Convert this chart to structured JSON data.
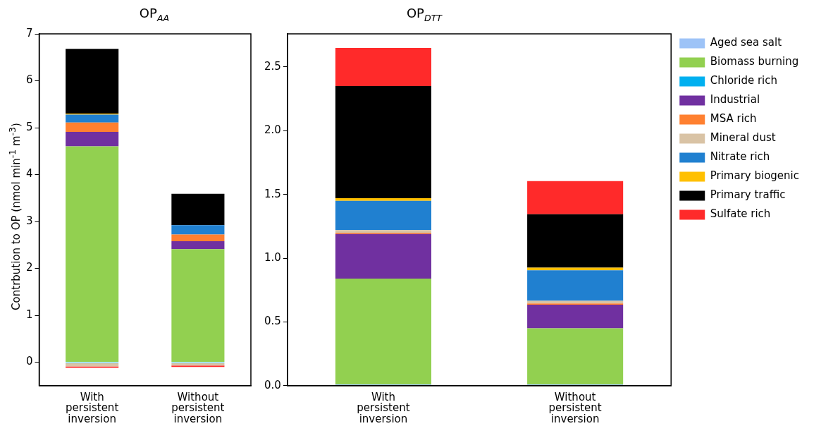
{
  "chart_data": [
    {
      "type": "bar",
      "title": "OP$_{AA}$",
      "ylabel": "Contrbution to OP (nmol min$^{-1}$ m$^{-3}$)",
      "categories": [
        "With persistent inversion",
        "Without persistent inversion"
      ],
      "stacked": true,
      "ylim": [
        -0.5,
        7
      ],
      "yticks": [
        0,
        1,
        2,
        3,
        4,
        5,
        6,
        7
      ],
      "grid": false,
      "legend": false,
      "series": [
        {
          "color": "#9dc3f7",
          "values": [
            0,
            0
          ]
        },
        {
          "color": "#92d050",
          "values": [
            4.6,
            2.41
          ]
        },
        {
          "color": "#00b0f0",
          "values": [
            -0.02,
            -0.02
          ]
        },
        {
          "color": "#7030a0",
          "values": [
            0.31,
            0.17
          ]
        },
        {
          "color": "#ff8030",
          "values": [
            0.2,
            0.14
          ]
        },
        {
          "color": "#d9c3a5",
          "values": [
            -0.07,
            -0.05
          ]
        },
        {
          "color": "#2080d0",
          "values": [
            0.17,
            0.2
          ]
        },
        {
          "color": "#ffc000",
          "values": [
            0.02,
            0
          ]
        },
        {
          "color": "#000000",
          "values": [
            1.38,
            0.67
          ]
        },
        {
          "color": "#ff2a2a",
          "values": [
            -0.03,
            -0.03
          ]
        }
      ]
    },
    {
      "type": "bar",
      "title": "OP$_{DTT}$",
      "categories": [
        "With persistent inversion",
        "Without persistent inversion"
      ],
      "stacked": true,
      "ylim": [
        0,
        2.76
      ],
      "yticks": [
        {
          "value": 0,
          "label": "0.0"
        },
        {
          "value": 0.5,
          "label": "0.5"
        },
        {
          "value": 1,
          "label": "1.0"
        },
        {
          "value": 1.5,
          "label": "1.5"
        },
        {
          "value": 2,
          "label": "2.0"
        },
        {
          "value": 2.5,
          "label": "2.5"
        }
      ],
      "grid": false,
      "legend": "right",
      "series": [
        {
          "name": "Aged sea salt",
          "color": "#9dc3f7",
          "values": [
            0.01,
            0.01
          ]
        },
        {
          "name": "Biomass burning",
          "color": "#92d050",
          "values": [
            0.83,
            0.44
          ]
        },
        {
          "name": "Chloride rich",
          "color": "#00b0f0",
          "values": [
            0,
            0
          ]
        },
        {
          "name": "Industrial",
          "color": "#7030a0",
          "values": [
            0.35,
            0.185
          ]
        },
        {
          "name": "MSA rich",
          "color": "#ff8030",
          "values": [
            0.01,
            0.01
          ]
        },
        {
          "name": "Mineral dust",
          "color": "#d9c3a5",
          "values": [
            0.02,
            0.02
          ]
        },
        {
          "name": "Nitrate rich",
          "color": "#2080d0",
          "values": [
            0.23,
            0.24
          ]
        },
        {
          "name": "Primary biogenic",
          "color": "#ffc000",
          "values": [
            0.02,
            0.02
          ]
        },
        {
          "name": "Primary traffic",
          "color": "#000000",
          "values": [
            0.88,
            0.42
          ]
        },
        {
          "name": "Sulfate rich",
          "color": "#ff2a2a",
          "values": [
            0.3,
            0.26
          ]
        }
      ]
    }
  ]
}
